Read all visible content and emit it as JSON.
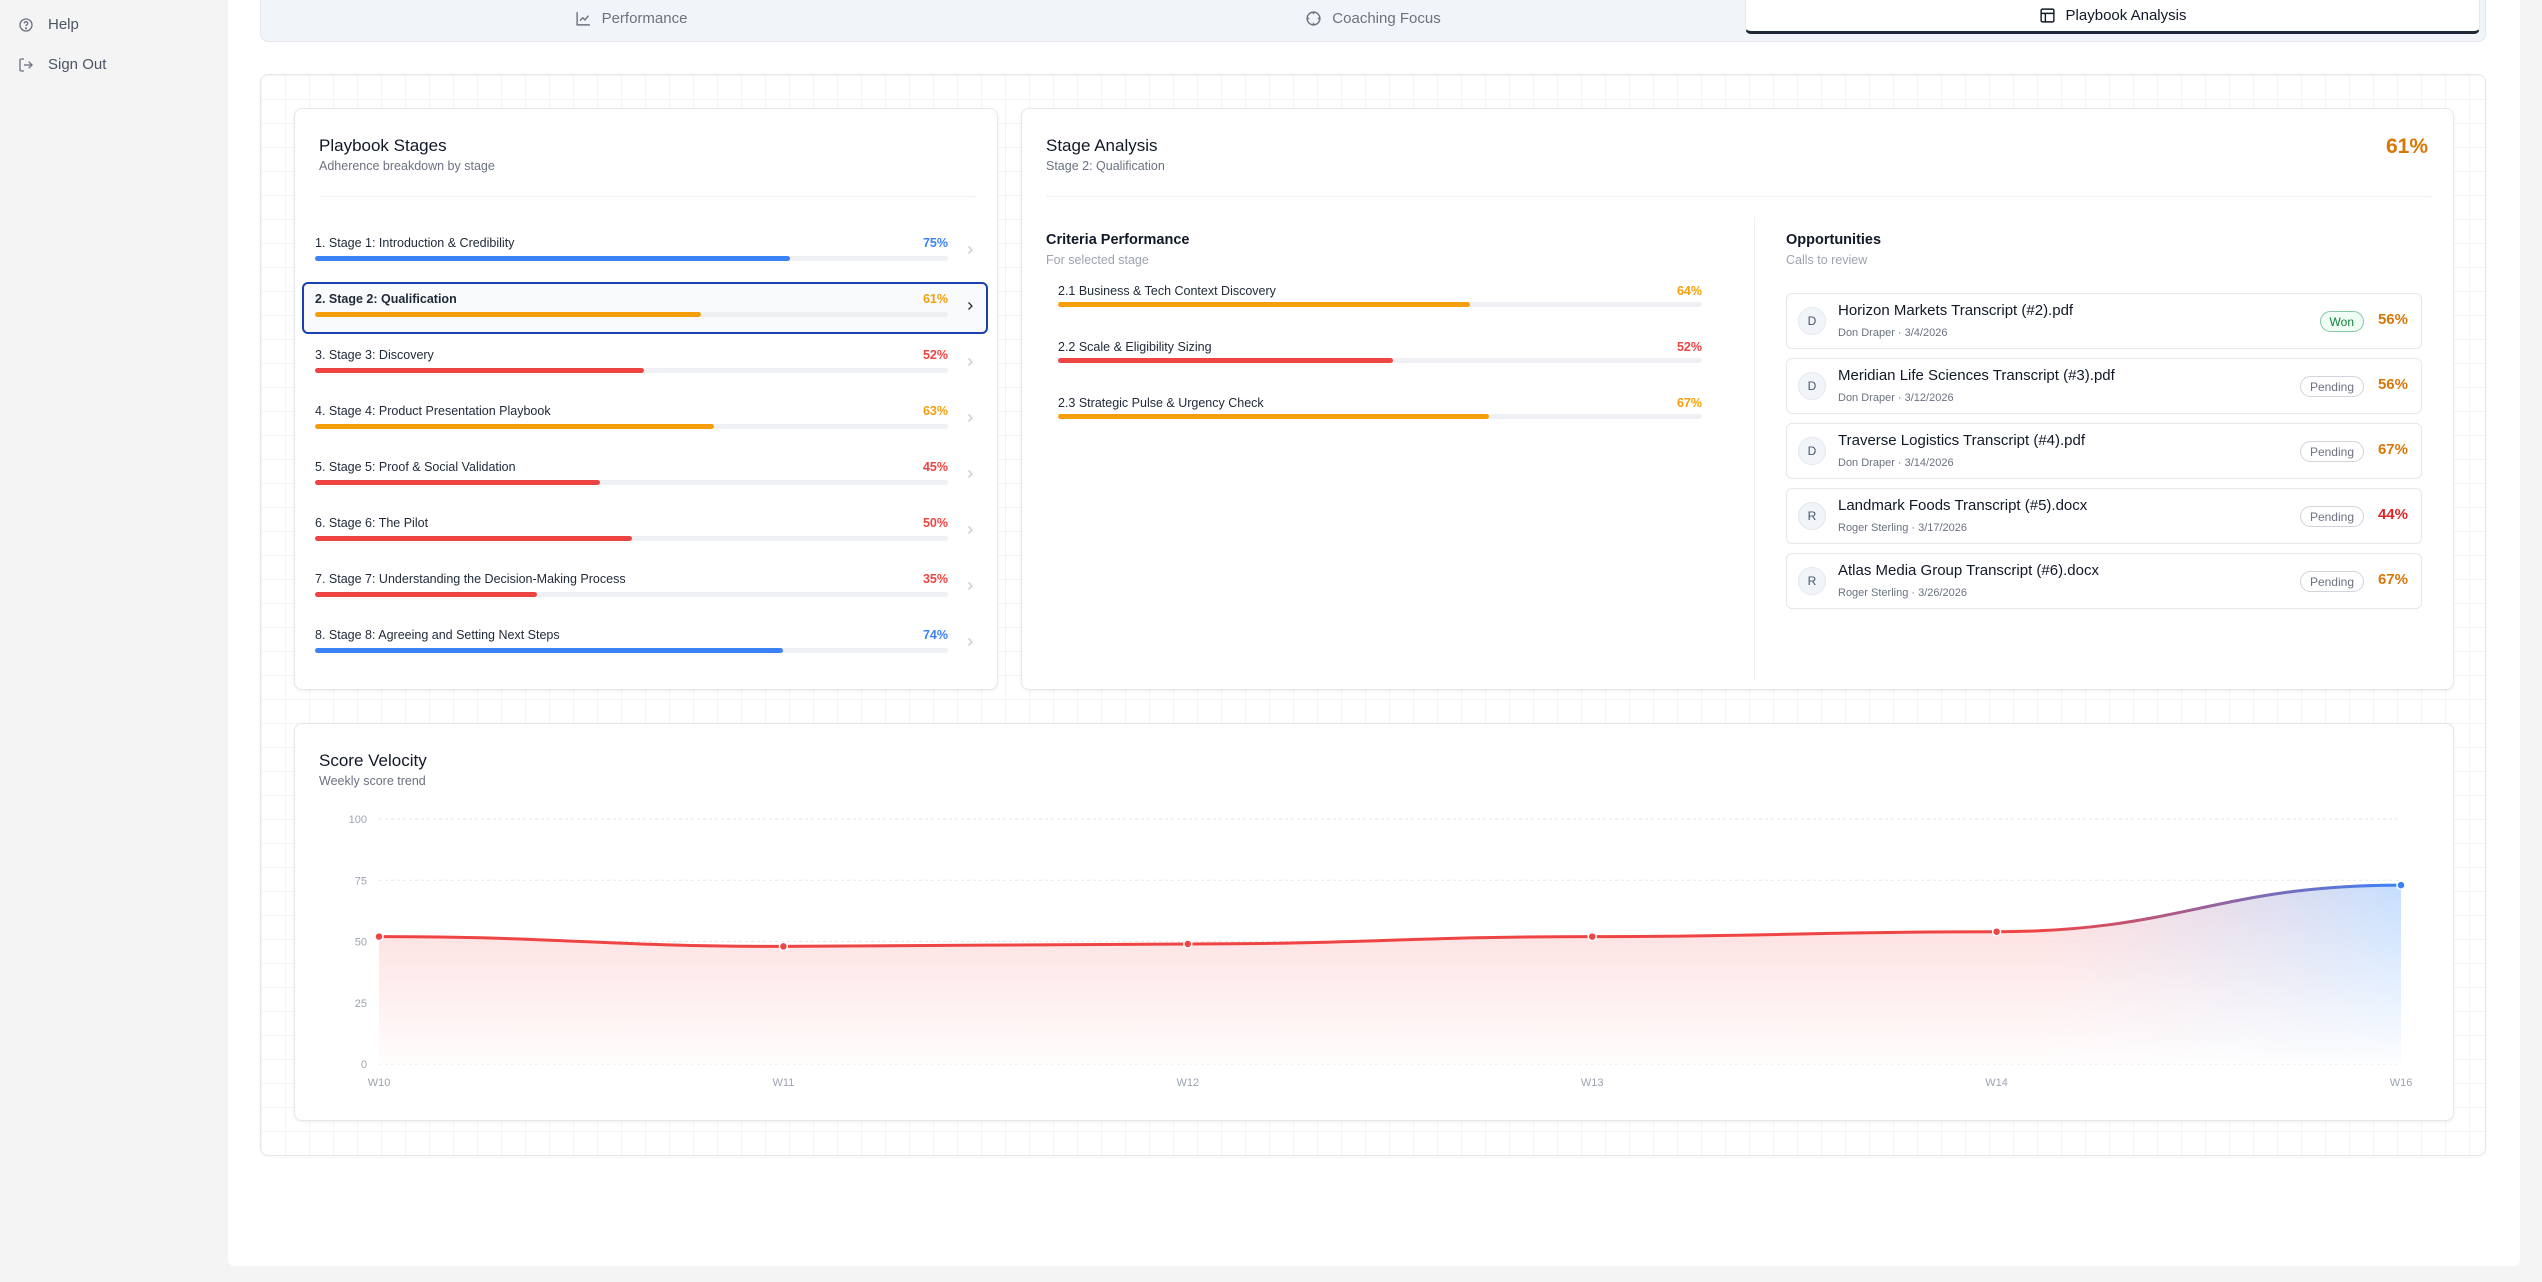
{
  "sidebar": {
    "items": [
      {
        "label": "Help",
        "icon": "help-circle-icon"
      },
      {
        "label": "Sign Out",
        "icon": "sign-out-icon"
      }
    ]
  },
  "tabs": [
    {
      "label": "Performance",
      "icon": "line-chart-icon",
      "active": false
    },
    {
      "label": "Coaching Focus",
      "icon": "target-icon",
      "active": false
    },
    {
      "label": "Playbook Analysis",
      "icon": "layout-icon",
      "active": true
    }
  ],
  "stages_card": {
    "title": "Playbook Stages",
    "subtitle": "Adherence breakdown by stage",
    "stages": [
      {
        "name": "1. Stage 1: Introduction & Credibility",
        "pct_label": "75%",
        "value": 75,
        "color": "#3b82f6"
      },
      {
        "name": "2. Stage 2: Qualification",
        "pct_label": "61%",
        "value": 61,
        "color": "#f59e0b",
        "selected": true
      },
      {
        "name": "3. Stage 3: Discovery",
        "pct_label": "52%",
        "value": 52,
        "color": "#ef4444"
      },
      {
        "name": "4. Stage 4: Product Presentation Playbook",
        "pct_label": "63%",
        "value": 63,
        "color": "#f59e0b"
      },
      {
        "name": "5. Stage 5: Proof & Social Validation",
        "pct_label": "45%",
        "value": 45,
        "color": "#ef4444"
      },
      {
        "name": "6. Stage 6: The Pilot",
        "pct_label": "50%",
        "value": 50,
        "color": "#ef4444"
      },
      {
        "name": "7. Stage 7: Understanding the Decision-Making Process",
        "pct_label": "35%",
        "value": 35,
        "color": "#ef4444"
      },
      {
        "name": "8. Stage 8: Agreeing and Setting Next Steps",
        "pct_label": "74%",
        "value": 74,
        "color": "#3b82f6"
      }
    ]
  },
  "analysis_card": {
    "title": "Stage Analysis",
    "subtitle": "Stage 2: Qualification",
    "score": "61%",
    "score_color": "#d97706",
    "criteria_title": "Criteria Performance",
    "criteria_subtitle": "For selected stage",
    "criteria": [
      {
        "name": "2.1 Business & Tech Context Discovery",
        "pct_label": "64%",
        "value": 64,
        "color": "#f59e0b"
      },
      {
        "name": "2.2 Scale & Eligibility Sizing",
        "pct_label": "52%",
        "value": 52,
        "color": "#ef4444"
      },
      {
        "name": "2.3 Strategic Pulse & Urgency Check",
        "pct_label": "67%",
        "value": 67,
        "color": "#f59e0b"
      }
    ],
    "opportunities_title": "Opportunities",
    "opportunities_subtitle": "Calls to review",
    "opportunities": [
      {
        "initial": "D",
        "title": "Horizon Markets Transcript (#2).pdf",
        "meta": "Don Draper · 3/4/2026",
        "status": "Won",
        "pct": "56%",
        "pct_color": "#d97706"
      },
      {
        "initial": "D",
        "title": "Meridian Life Sciences Transcript (#3).pdf",
        "meta": "Don Draper · 3/12/2026",
        "status": "Pending",
        "pct": "56%",
        "pct_color": "#d97706"
      },
      {
        "initial": "D",
        "title": "Traverse Logistics Transcript (#4).pdf",
        "meta": "Don Draper · 3/14/2026",
        "status": "Pending",
        "pct": "67%",
        "pct_color": "#d97706"
      },
      {
        "initial": "R",
        "title": "Landmark Foods Transcript (#5).docx",
        "meta": "Roger Sterling · 3/17/2026",
        "status": "Pending",
        "pct": "44%",
        "pct_color": "#dc2626"
      },
      {
        "initial": "R",
        "title": "Atlas Media Group Transcript (#6).docx",
        "meta": "Roger Sterling · 3/26/2026",
        "status": "Pending",
        "pct": "67%",
        "pct_color": "#d97706"
      }
    ]
  },
  "velocity_card": {
    "title": "Score Velocity",
    "subtitle": "Weekly score trend"
  },
  "chart_data": {
    "type": "area",
    "title": "Score Velocity",
    "x": [
      "W10",
      "W11",
      "W12",
      "W13",
      "W14",
      "W16"
    ],
    "series": [
      {
        "values": [
          52,
          48,
          49,
          52,
          54,
          73
        ]
      }
    ],
    "yticks": [
      0,
      25,
      50,
      75,
      100
    ],
    "ylim": [
      0,
      100
    ],
    "grid": true,
    "colors": {
      "line_start": "#ef4444",
      "line_end": "#3b82f6"
    }
  }
}
